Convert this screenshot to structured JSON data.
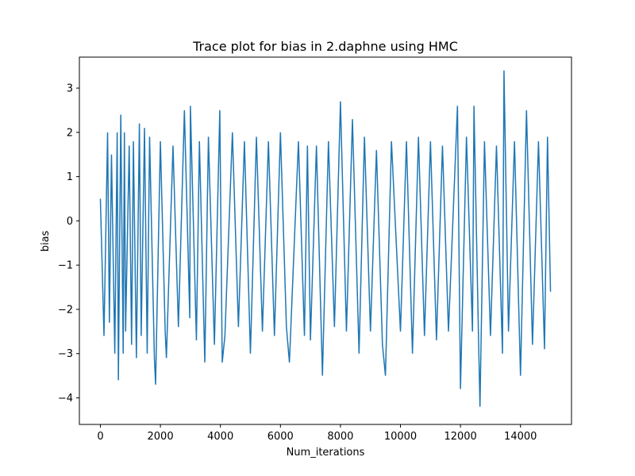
{
  "chart_data": {
    "type": "line",
    "title": "Trace plot for bias in 2.daphne using HMC",
    "xlabel": "Num_iterations",
    "ylabel": "bias",
    "xlim": [
      -700,
      15700
    ],
    "ylim": [
      -4.6,
      3.7
    ],
    "x_ticks": [
      0,
      2000,
      4000,
      6000,
      8000,
      10000,
      12000,
      14000
    ],
    "x_tick_labels": [
      "0",
      "2000",
      "4000",
      "6000",
      "8000",
      "10000",
      "12000",
      "14000"
    ],
    "y_ticks": [
      -4,
      -3,
      -2,
      -1,
      0,
      1,
      2,
      3
    ],
    "y_tick_labels": [
      "−4",
      "−3",
      "−2",
      "−1",
      "0",
      "1",
      "2",
      "3"
    ],
    "grid": false,
    "legend": "none",
    "series": [
      {
        "color": "#1f77b4",
        "x": [
          0,
          120,
          240,
          300,
          370,
          480,
          560,
          600,
          680,
          760,
          800,
          840,
          960,
          1040,
          1100,
          1200,
          1300,
          1360,
          1470,
          1560,
          1640,
          1800,
          1840,
          2000,
          2160,
          2200,
          2420,
          2600,
          2800,
          2980,
          3000,
          3200,
          3300,
          3480,
          3600,
          3800,
          3980,
          4060,
          4150,
          4400,
          4600,
          4800,
          5000,
          5200,
          5400,
          5600,
          5800,
          6000,
          6200,
          6300,
          6600,
          6800,
          6900,
          7000,
          7200,
          7400,
          7600,
          7800,
          8000,
          8200,
          8400,
          8620,
          8800,
          9000,
          9200,
          9400,
          9500,
          9700,
          10000,
          10200,
          10400,
          10600,
          10800,
          11000,
          11200,
          11400,
          11600,
          11900,
          12000,
          12200,
          12400,
          12450,
          12600,
          12650,
          12800,
          13000,
          13200,
          13400,
          13450,
          13600,
          13800,
          14000,
          14200,
          14400,
          14600,
          14800,
          14900,
          15000
        ],
        "y": [
          0.5,
          -2.6,
          2.0,
          -2.3,
          1.5,
          -3.0,
          2.0,
          -3.6,
          2.4,
          -3.0,
          2.0,
          -2.5,
          1.7,
          -2.8,
          1.8,
          -3.1,
          2.2,
          -2.6,
          2.1,
          -3.0,
          1.9,
          -3.1,
          -3.7,
          1.8,
          -2.5,
          -3.1,
          1.7,
          -2.4,
          2.5,
          -2.2,
          2.6,
          -2.7,
          1.8,
          -3.2,
          1.9,
          -2.8,
          2.5,
          -3.2,
          -2.6,
          2.0,
          -2.4,
          1.8,
          -3.0,
          1.9,
          -2.5,
          1.8,
          -2.6,
          2.0,
          -2.4,
          -3.2,
          1.8,
          -2.6,
          1.7,
          -2.7,
          1.7,
          -3.5,
          1.8,
          -2.4,
          2.7,
          -2.5,
          2.3,
          -3.0,
          1.9,
          -2.5,
          1.6,
          -2.8,
          -3.5,
          1.8,
          -2.5,
          1.8,
          -3.0,
          1.9,
          -2.6,
          1.8,
          -2.7,
          1.7,
          -2.5,
          2.6,
          -3.8,
          1.9,
          -2.5,
          2.6,
          -2.6,
          -4.2,
          1.8,
          -2.6,
          1.7,
          -3.0,
          3.4,
          -2.5,
          1.8,
          -3.5,
          2.5,
          -2.8,
          1.8,
          -2.9,
          1.9,
          -1.6
        ]
      }
    ]
  }
}
